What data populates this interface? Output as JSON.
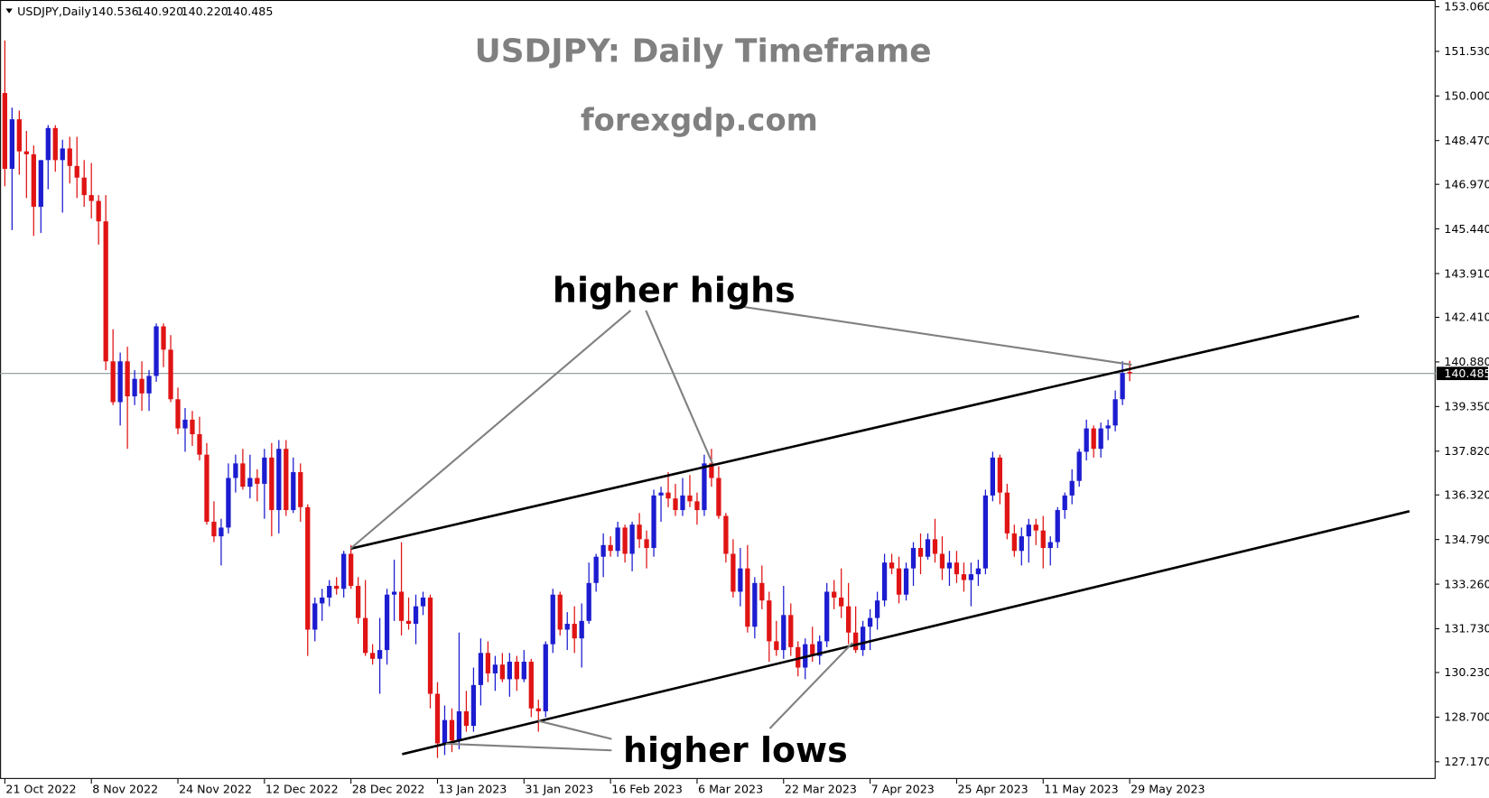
{
  "chart_data": {
    "type": "candlestick",
    "header": {
      "symbol": "USDJPY,Daily",
      "ohlc_labels": [
        "140.536",
        "140.920",
        "140.220",
        "140.485"
      ]
    },
    "title": "USDJPY: Daily Timeframe",
    "subtitle": "forexgdp.com",
    "annotations": [
      "higher highs",
      "higher lows"
    ],
    "up_color": "#1c1cd0",
    "down_color": "#e01414",
    "trendline_color": "#000000",
    "xlim": [
      -0.66,
      198.42
    ],
    "ylim": [
      126.58,
      153.29
    ],
    "xticks": [
      {
        "value": 0,
        "label": "21 Oct 2022"
      },
      {
        "value": 12,
        "label": "8 Nov 2022"
      },
      {
        "value": 24,
        "label": "24 Nov 2022"
      },
      {
        "value": 36,
        "label": "12 Dec 2022"
      },
      {
        "value": 48,
        "label": "28 Dec 2022"
      },
      {
        "value": 60,
        "label": "13 Jan 2023"
      },
      {
        "value": 72,
        "label": "31 Jan 2023"
      },
      {
        "value": 84,
        "label": "16 Feb 2023"
      },
      {
        "value": 96,
        "label": "6 Mar 2023"
      },
      {
        "value": 108,
        "label": "22 Mar 2023"
      },
      {
        "value": 120,
        "label": "7 Apr 2023"
      },
      {
        "value": 132,
        "label": "25 Apr 2023"
      },
      {
        "value": 144,
        "label": "11 May 2023"
      },
      {
        "value": 156,
        "label": "29 May 2023"
      }
    ],
    "yticks": [
      {
        "value": 153.06,
        "label": "153.060"
      },
      {
        "value": 151.53,
        "label": "151.530"
      },
      {
        "value": 150.0,
        "label": "150.000"
      },
      {
        "value": 148.47,
        "label": "148.470"
      },
      {
        "value": 146.97,
        "label": "146.970"
      },
      {
        "value": 145.44,
        "label": "145.440"
      },
      {
        "value": 143.91,
        "label": "143.910"
      },
      {
        "value": 142.41,
        "label": "142.410"
      },
      {
        "value": 140.88,
        "label": "140.880"
      },
      {
        "value": 139.35,
        "label": "139.350"
      },
      {
        "value": 137.82,
        "label": "137.820"
      },
      {
        "value": 136.32,
        "label": "136.320"
      },
      {
        "value": 134.79,
        "label": "134.790"
      },
      {
        "value": 133.26,
        "label": "133.260"
      },
      {
        "value": 131.73,
        "label": "131.730"
      },
      {
        "value": 130.23,
        "label": "130.230"
      },
      {
        "value": 128.7,
        "label": "128.700"
      },
      {
        "value": 127.17,
        "label": "127.170"
      }
    ],
    "last_price": {
      "value": 140.485,
      "label": "140.485"
    },
    "trendlines": [
      {
        "x": [
          48,
          187.8
        ],
        "y": [
          134.48,
          142.45
        ]
      },
      {
        "x": [
          55.1,
          194.8
        ],
        "y": [
          127.43,
          135.76
        ]
      }
    ],
    "candles": [
      [
        150.1,
        151.9,
        146.9,
        147.5
      ],
      [
        147.5,
        149.6,
        145.4,
        149.2
      ],
      [
        149.2,
        149.5,
        147.3,
        148.1
      ],
      [
        148.1,
        148.8,
        146.5,
        148.0
      ],
      [
        148.0,
        148.3,
        145.2,
        146.2
      ],
      [
        146.2,
        147.8,
        145.3,
        147.8
      ],
      [
        147.8,
        149.0,
        146.8,
        148.9
      ],
      [
        148.9,
        149.0,
        147.4,
        147.8
      ],
      [
        147.8,
        148.5,
        146.0,
        148.2
      ],
      [
        148.2,
        148.6,
        147.0,
        147.6
      ],
      [
        147.6,
        148.6,
        146.5,
        147.2
      ],
      [
        147.2,
        147.8,
        146.2,
        146.6
      ],
      [
        146.6,
        147.7,
        145.8,
        146.4
      ],
      [
        146.4,
        146.6,
        144.9,
        145.7
      ],
      [
        145.7,
        146.6,
        140.6,
        140.9
      ],
      [
        140.9,
        142.0,
        139.4,
        139.5
      ],
      [
        139.5,
        141.2,
        138.7,
        140.9
      ],
      [
        140.9,
        141.4,
        137.9,
        139.7
      ],
      [
        139.7,
        140.6,
        139.4,
        140.3
      ],
      [
        140.3,
        140.9,
        139.2,
        139.8
      ],
      [
        139.8,
        140.6,
        139.2,
        140.4
      ],
      [
        140.4,
        142.2,
        140.2,
        142.1
      ],
      [
        142.1,
        142.2,
        140.7,
        141.3
      ],
      [
        141.3,
        141.8,
        139.5,
        139.6
      ],
      [
        139.6,
        140.0,
        138.4,
        138.6
      ],
      [
        138.6,
        139.3,
        137.8,
        138.9
      ],
      [
        138.9,
        139.2,
        138.0,
        138.4
      ],
      [
        138.4,
        139.0,
        137.5,
        137.7
      ],
      [
        137.7,
        138.1,
        135.3,
        135.4
      ],
      [
        135.4,
        136.1,
        134.7,
        134.9
      ],
      [
        134.9,
        135.5,
        133.9,
        135.2
      ],
      [
        135.2,
        137.4,
        135.0,
        136.9
      ],
      [
        136.9,
        137.7,
        136.4,
        137.4
      ],
      [
        137.4,
        137.9,
        136.5,
        136.6
      ],
      [
        136.6,
        137.7,
        136.2,
        136.9
      ],
      [
        136.9,
        137.2,
        136.1,
        136.7
      ],
      [
        136.7,
        137.9,
        135.5,
        137.6
      ],
      [
        137.6,
        138.1,
        134.9,
        135.8
      ],
      [
        135.8,
        138.2,
        135.0,
        137.9
      ],
      [
        137.9,
        138.2,
        135.6,
        135.8
      ],
      [
        135.8,
        137.6,
        135.7,
        137.1
      ],
      [
        137.1,
        137.4,
        135.4,
        135.9
      ],
      [
        135.9,
        136.0,
        130.8,
        131.7
      ],
      [
        131.7,
        132.8,
        131.3,
        132.6
      ],
      [
        132.6,
        133.1,
        132.0,
        132.8
      ],
      [
        132.8,
        133.4,
        132.5,
        133.2
      ],
      [
        133.2,
        133.5,
        132.9,
        133.1
      ],
      [
        133.1,
        134.4,
        132.8,
        134.3
      ],
      [
        134.3,
        134.6,
        133.1,
        133.2
      ],
      [
        133.2,
        133.5,
        131.9,
        132.1
      ],
      [
        132.1,
        133.4,
        130.8,
        130.9
      ],
      [
        130.9,
        131.2,
        130.5,
        130.7
      ],
      [
        130.7,
        132.1,
        129.5,
        131.0
      ],
      [
        131.0,
        133.1,
        130.5,
        132.9
      ],
      [
        132.9,
        134.1,
        132.0,
        133.0
      ],
      [
        133.0,
        134.7,
        131.5,
        132.0
      ],
      [
        132.0,
        132.8,
        131.7,
        131.9
      ],
      [
        131.9,
        132.9,
        131.2,
        132.5
      ],
      [
        132.5,
        133.0,
        132.2,
        132.8
      ],
      [
        132.8,
        132.9,
        129.0,
        129.5
      ],
      [
        129.5,
        129.9,
        127.3,
        127.8
      ],
      [
        127.8,
        129.1,
        127.4,
        128.6
      ],
      [
        128.6,
        129.0,
        127.5,
        127.9
      ],
      [
        127.9,
        131.6,
        127.6,
        128.9
      ],
      [
        128.9,
        129.6,
        128.2,
        128.4
      ],
      [
        128.4,
        130.4,
        128.2,
        129.8
      ],
      [
        129.8,
        131.4,
        129.1,
        130.9
      ],
      [
        130.9,
        131.3,
        129.9,
        130.2
      ],
      [
        130.2,
        130.8,
        129.6,
        130.5
      ],
      [
        130.5,
        130.9,
        129.9,
        130.0
      ],
      [
        130.0,
        130.9,
        129.4,
        130.6
      ],
      [
        130.6,
        130.8,
        129.6,
        130.0
      ],
      [
        130.0,
        131.0,
        129.9,
        130.6
      ],
      [
        130.6,
        130.7,
        128.7,
        129.0
      ],
      [
        129.0,
        129.3,
        128.2,
        128.9
      ],
      [
        128.9,
        131.3,
        128.7,
        131.2
      ],
      [
        131.2,
        133.1,
        130.9,
        132.9
      ],
      [
        132.9,
        133.0,
        131.5,
        131.7
      ],
      [
        131.7,
        132.3,
        131.0,
        131.9
      ],
      [
        131.9,
        132.5,
        130.9,
        131.4
      ],
      [
        131.4,
        132.6,
        130.4,
        132.0
      ],
      [
        132.0,
        134.0,
        131.9,
        133.3
      ],
      [
        133.3,
        134.3,
        133.0,
        134.2
      ],
      [
        134.2,
        135.0,
        133.5,
        134.6
      ],
      [
        134.6,
        134.9,
        134.2,
        134.4
      ],
      [
        134.4,
        135.4,
        134.2,
        135.2
      ],
      [
        135.2,
        135.3,
        134.0,
        134.3
      ],
      [
        134.3,
        135.4,
        133.7,
        135.3
      ],
      [
        135.3,
        135.7,
        134.5,
        134.8
      ],
      [
        134.8,
        135.1,
        133.8,
        134.5
      ],
      [
        134.5,
        136.5,
        134.2,
        136.3
      ],
      [
        136.3,
        136.6,
        135.4,
        136.4
      ],
      [
        136.4,
        137.1,
        135.9,
        136.2
      ],
      [
        136.2,
        136.7,
        135.6,
        135.8
      ],
      [
        135.8,
        136.9,
        135.6,
        136.3
      ],
      [
        136.3,
        137.0,
        135.9,
        136.1
      ],
      [
        136.1,
        136.4,
        135.3,
        135.8
      ],
      [
        135.8,
        137.7,
        135.6,
        137.4
      ],
      [
        137.4,
        137.9,
        136.6,
        136.9
      ],
      [
        136.9,
        137.3,
        135.5,
        135.6
      ],
      [
        135.6,
        135.7,
        134.0,
        134.3
      ],
      [
        134.3,
        134.8,
        132.8,
        133.0
      ],
      [
        133.0,
        134.5,
        132.5,
        133.8
      ],
      [
        133.8,
        134.6,
        131.6,
        131.8
      ],
      [
        131.8,
        133.5,
        131.4,
        133.3
      ],
      [
        133.3,
        133.9,
        132.4,
        132.7
      ],
      [
        132.7,
        133.0,
        130.6,
        131.3
      ],
      [
        131.3,
        132.0,
        130.8,
        131.0
      ],
      [
        131.0,
        133.2,
        130.7,
        132.2
      ],
      [
        132.2,
        132.6,
        130.8,
        131.1
      ],
      [
        131.1,
        131.3,
        130.1,
        130.4
      ],
      [
        130.4,
        131.4,
        130.0,
        131.2
      ],
      [
        131.2,
        131.8,
        130.6,
        130.8
      ],
      [
        130.8,
        131.5,
        130.5,
        131.3
      ],
      [
        131.3,
        133.3,
        131.1,
        133.0
      ],
      [
        133.0,
        133.4,
        132.4,
        132.8
      ],
      [
        132.8,
        133.8,
        132.1,
        132.5
      ],
      [
        132.5,
        133.3,
        131.2,
        131.6
      ],
      [
        131.6,
        132.5,
        130.9,
        131.0
      ],
      [
        131.0,
        132.0,
        130.8,
        131.8
      ],
      [
        131.8,
        132.4,
        131.0,
        132.1
      ],
      [
        132.1,
        133.0,
        131.7,
        132.7
      ],
      [
        132.7,
        134.3,
        132.5,
        134.0
      ],
      [
        134.0,
        134.3,
        133.6,
        133.8
      ],
      [
        133.8,
        134.2,
        132.6,
        132.9
      ],
      [
        132.9,
        134.0,
        132.7,
        133.8
      ],
      [
        133.8,
        134.7,
        133.2,
        134.5
      ],
      [
        134.5,
        135.0,
        133.6,
        134.2
      ],
      [
        134.2,
        135.0,
        134.1,
        134.8
      ],
      [
        134.8,
        135.5,
        134.0,
        134.3
      ],
      [
        134.3,
        134.9,
        133.4,
        133.8
      ],
      [
        133.8,
        134.4,
        133.2,
        134.0
      ],
      [
        134.0,
        134.4,
        133.3,
        133.6
      ],
      [
        133.6,
        134.0,
        133.0,
        133.4
      ],
      [
        133.4,
        134.0,
        132.5,
        133.6
      ],
      [
        133.6,
        134.1,
        133.2,
        133.8
      ],
      [
        133.8,
        136.5,
        133.6,
        136.3
      ],
      [
        136.3,
        137.8,
        136.1,
        137.6
      ],
      [
        137.6,
        137.7,
        136.0,
        136.4
      ],
      [
        136.4,
        136.7,
        134.8,
        135.0
      ],
      [
        135.0,
        135.3,
        134.2,
        134.4
      ],
      [
        134.4,
        135.2,
        133.9,
        134.9
      ],
      [
        134.9,
        135.5,
        134.0,
        135.3
      ],
      [
        135.3,
        135.5,
        134.6,
        135.1
      ],
      [
        135.1,
        135.6,
        133.8,
        134.5
      ],
      [
        134.5,
        134.9,
        133.9,
        134.7
      ],
      [
        134.7,
        135.9,
        134.5,
        135.8
      ],
      [
        135.8,
        136.4,
        135.5,
        136.3
      ],
      [
        136.3,
        137.2,
        136.0,
        136.8
      ],
      [
        136.8,
        137.9,
        136.6,
        137.8
      ],
      [
        137.8,
        138.9,
        137.5,
        138.6
      ],
      [
        138.6,
        138.7,
        137.6,
        137.9
      ],
      [
        137.9,
        138.8,
        137.6,
        138.6
      ],
      [
        138.6,
        138.9,
        138.2,
        138.7
      ],
      [
        138.7,
        139.9,
        138.5,
        139.6
      ],
      [
        139.6,
        140.9,
        139.4,
        140.5
      ],
      [
        140.536,
        140.92,
        140.22,
        140.485
      ]
    ]
  }
}
